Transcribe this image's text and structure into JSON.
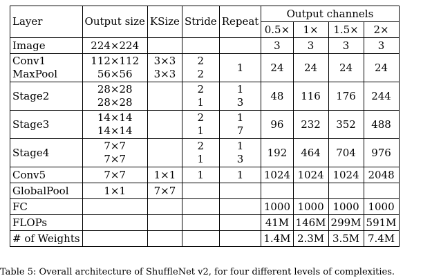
{
  "header": {
    "layer": "Layer",
    "output_size": "Output size",
    "ksize": "KSize",
    "stride": "Stride",
    "repeat": "Repeat",
    "output_channels": "Output channels",
    "widths": [
      "0.5×",
      "1×",
      "1.5×",
      "2×"
    ]
  },
  "rows": [
    {
      "layer": [
        "Image"
      ],
      "size": [
        "224×224"
      ],
      "ksize": [
        ""
      ],
      "stride": [
        ""
      ],
      "repeat": [
        ""
      ],
      "channels": [
        "3",
        "3",
        "3",
        "3"
      ]
    },
    {
      "layer": [
        "Conv1",
        "MaxPool"
      ],
      "size": [
        "112×112",
        "56×56"
      ],
      "ksize": [
        "3×3",
        "3×3"
      ],
      "stride": [
        "2",
        "2"
      ],
      "repeat": [
        "1"
      ],
      "channels": [
        "24",
        "24",
        "24",
        "24"
      ]
    },
    {
      "layer": [
        "Stage2"
      ],
      "size": [
        "28×28",
        "28×28"
      ],
      "ksize": [
        ""
      ],
      "stride": [
        "2",
        "1"
      ],
      "repeat": [
        "1",
        "3"
      ],
      "channels": [
        "48",
        "116",
        "176",
        "244"
      ]
    },
    {
      "layer": [
        "Stage3"
      ],
      "size": [
        "14×14",
        "14×14"
      ],
      "ksize": [
        ""
      ],
      "stride": [
        "2",
        "1"
      ],
      "repeat": [
        "1",
        "7"
      ],
      "channels": [
        "96",
        "232",
        "352",
        "488"
      ]
    },
    {
      "layer": [
        "Stage4"
      ],
      "size": [
        "7×7",
        "7×7"
      ],
      "ksize": [
        ""
      ],
      "stride": [
        "2",
        "1"
      ],
      "repeat": [
        "1",
        "3"
      ],
      "channels": [
        "192",
        "464",
        "704",
        "976"
      ]
    },
    {
      "layer": [
        "Conv5"
      ],
      "size": [
        "7×7"
      ],
      "ksize": [
        "1×1"
      ],
      "stride": [
        "1"
      ],
      "repeat": [
        "1"
      ],
      "channels": [
        "1024",
        "1024",
        "1024",
        "2048"
      ]
    },
    {
      "layer": [
        "GlobalPool"
      ],
      "size": [
        "1×1"
      ],
      "ksize": [
        "7×7"
      ],
      "stride": [
        ""
      ],
      "repeat": [
        ""
      ],
      "channels": [
        "",
        "",
        "",
        ""
      ]
    },
    {
      "layer": [
        "FC"
      ],
      "size": [
        ""
      ],
      "ksize": [
        ""
      ],
      "stride": [
        ""
      ],
      "repeat": [
        ""
      ],
      "channels": [
        "1000",
        "1000",
        "1000",
        "1000"
      ]
    },
    {
      "layer": [
        "FLOPs"
      ],
      "size": [
        ""
      ],
      "ksize": [
        ""
      ],
      "stride": [
        ""
      ],
      "repeat": [
        ""
      ],
      "channels": [
        "41M",
        "146M",
        "299M",
        "591M"
      ]
    },
    {
      "layer": [
        "# of Weights"
      ],
      "size": [
        ""
      ],
      "ksize": [
        ""
      ],
      "stride": [
        ""
      ],
      "repeat": [
        ""
      ],
      "channels": [
        "1.4M",
        "2.3M",
        "3.5M",
        "7.4M"
      ]
    }
  ],
  "caption": "Table 5: Overall architecture of ShuffleNet v2, for four different levels of complexities."
}
